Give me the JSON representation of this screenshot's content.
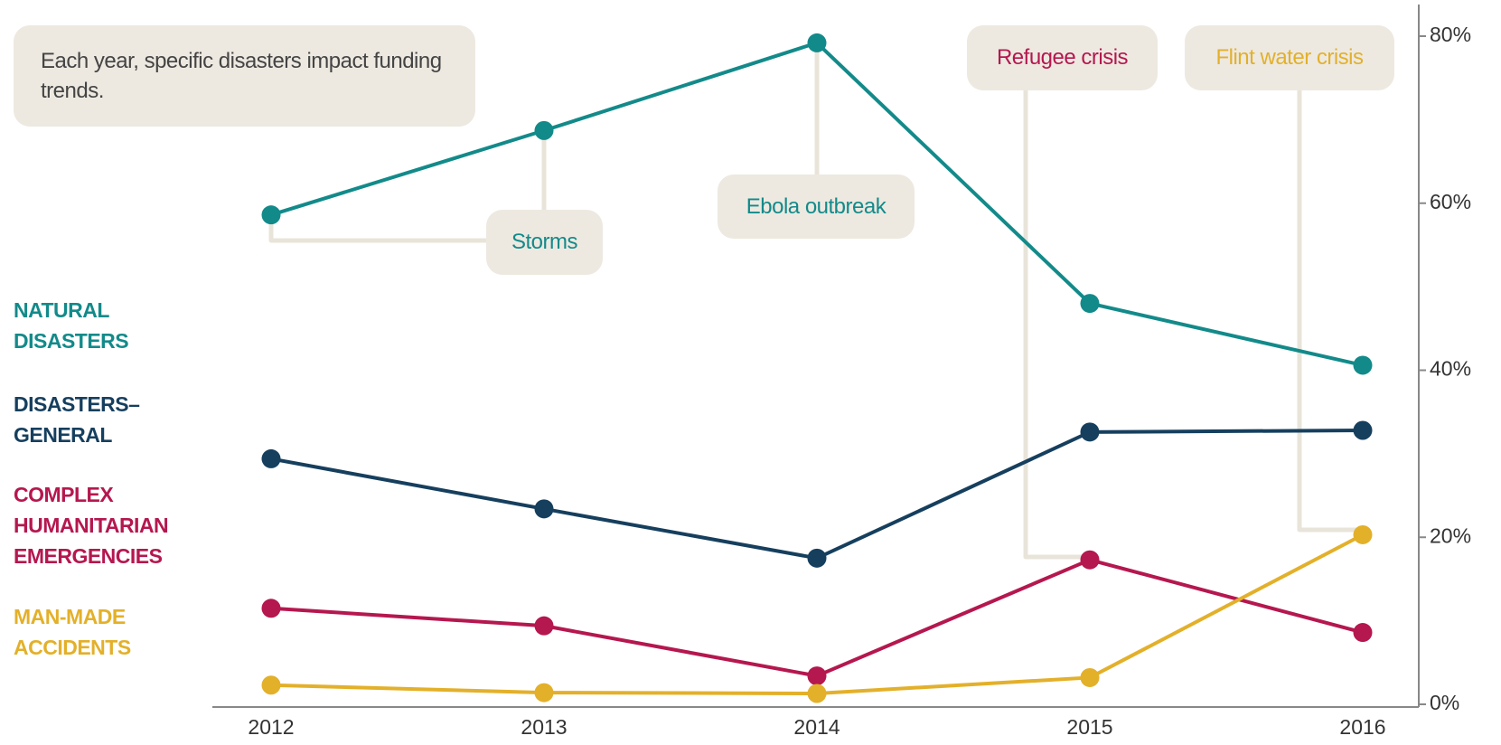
{
  "chart_data": {
    "type": "line",
    "subtitle": "Each year, specific disasters impact funding trends.",
    "categories": [
      "2012",
      "2013",
      "2014",
      "2015",
      "2016"
    ],
    "series": [
      {
        "name": "NATURAL DISASTERS",
        "color": "#138a8a",
        "values": [
          58.6,
          68.7,
          79.2,
          48,
          40.6
        ]
      },
      {
        "name": "DISASTERS–GENERAL",
        "color": "#163f5e",
        "values": [
          29.4,
          23.4,
          17.5,
          32.6,
          32.8
        ]
      },
      {
        "name": "COMPLEX HUMANITARIAN EMERGENCIES",
        "color": "#b5174f",
        "values": [
          11.5,
          9.4,
          3.4,
          17.3,
          8.6
        ]
      },
      {
        "name": "MAN-MADE ACCIDENTS",
        "color": "#e3b02a",
        "values": [
          2.3,
          1.4,
          1.3,
          3.2,
          20.3
        ]
      }
    ],
    "annotations": [
      "Storms",
      "Ebola outbreak",
      "Refugee crisis",
      "Flint water crisis"
    ],
    "ylim": [
      0,
      80
    ],
    "yticks": [
      {
        "value": 0,
        "label": "0%"
      },
      {
        "value": 20,
        "label": "20%"
      },
      {
        "value": 40,
        "label": "40%"
      },
      {
        "value": 60,
        "label": "60%"
      },
      {
        "value": 80,
        "label": "80%"
      }
    ]
  }
}
